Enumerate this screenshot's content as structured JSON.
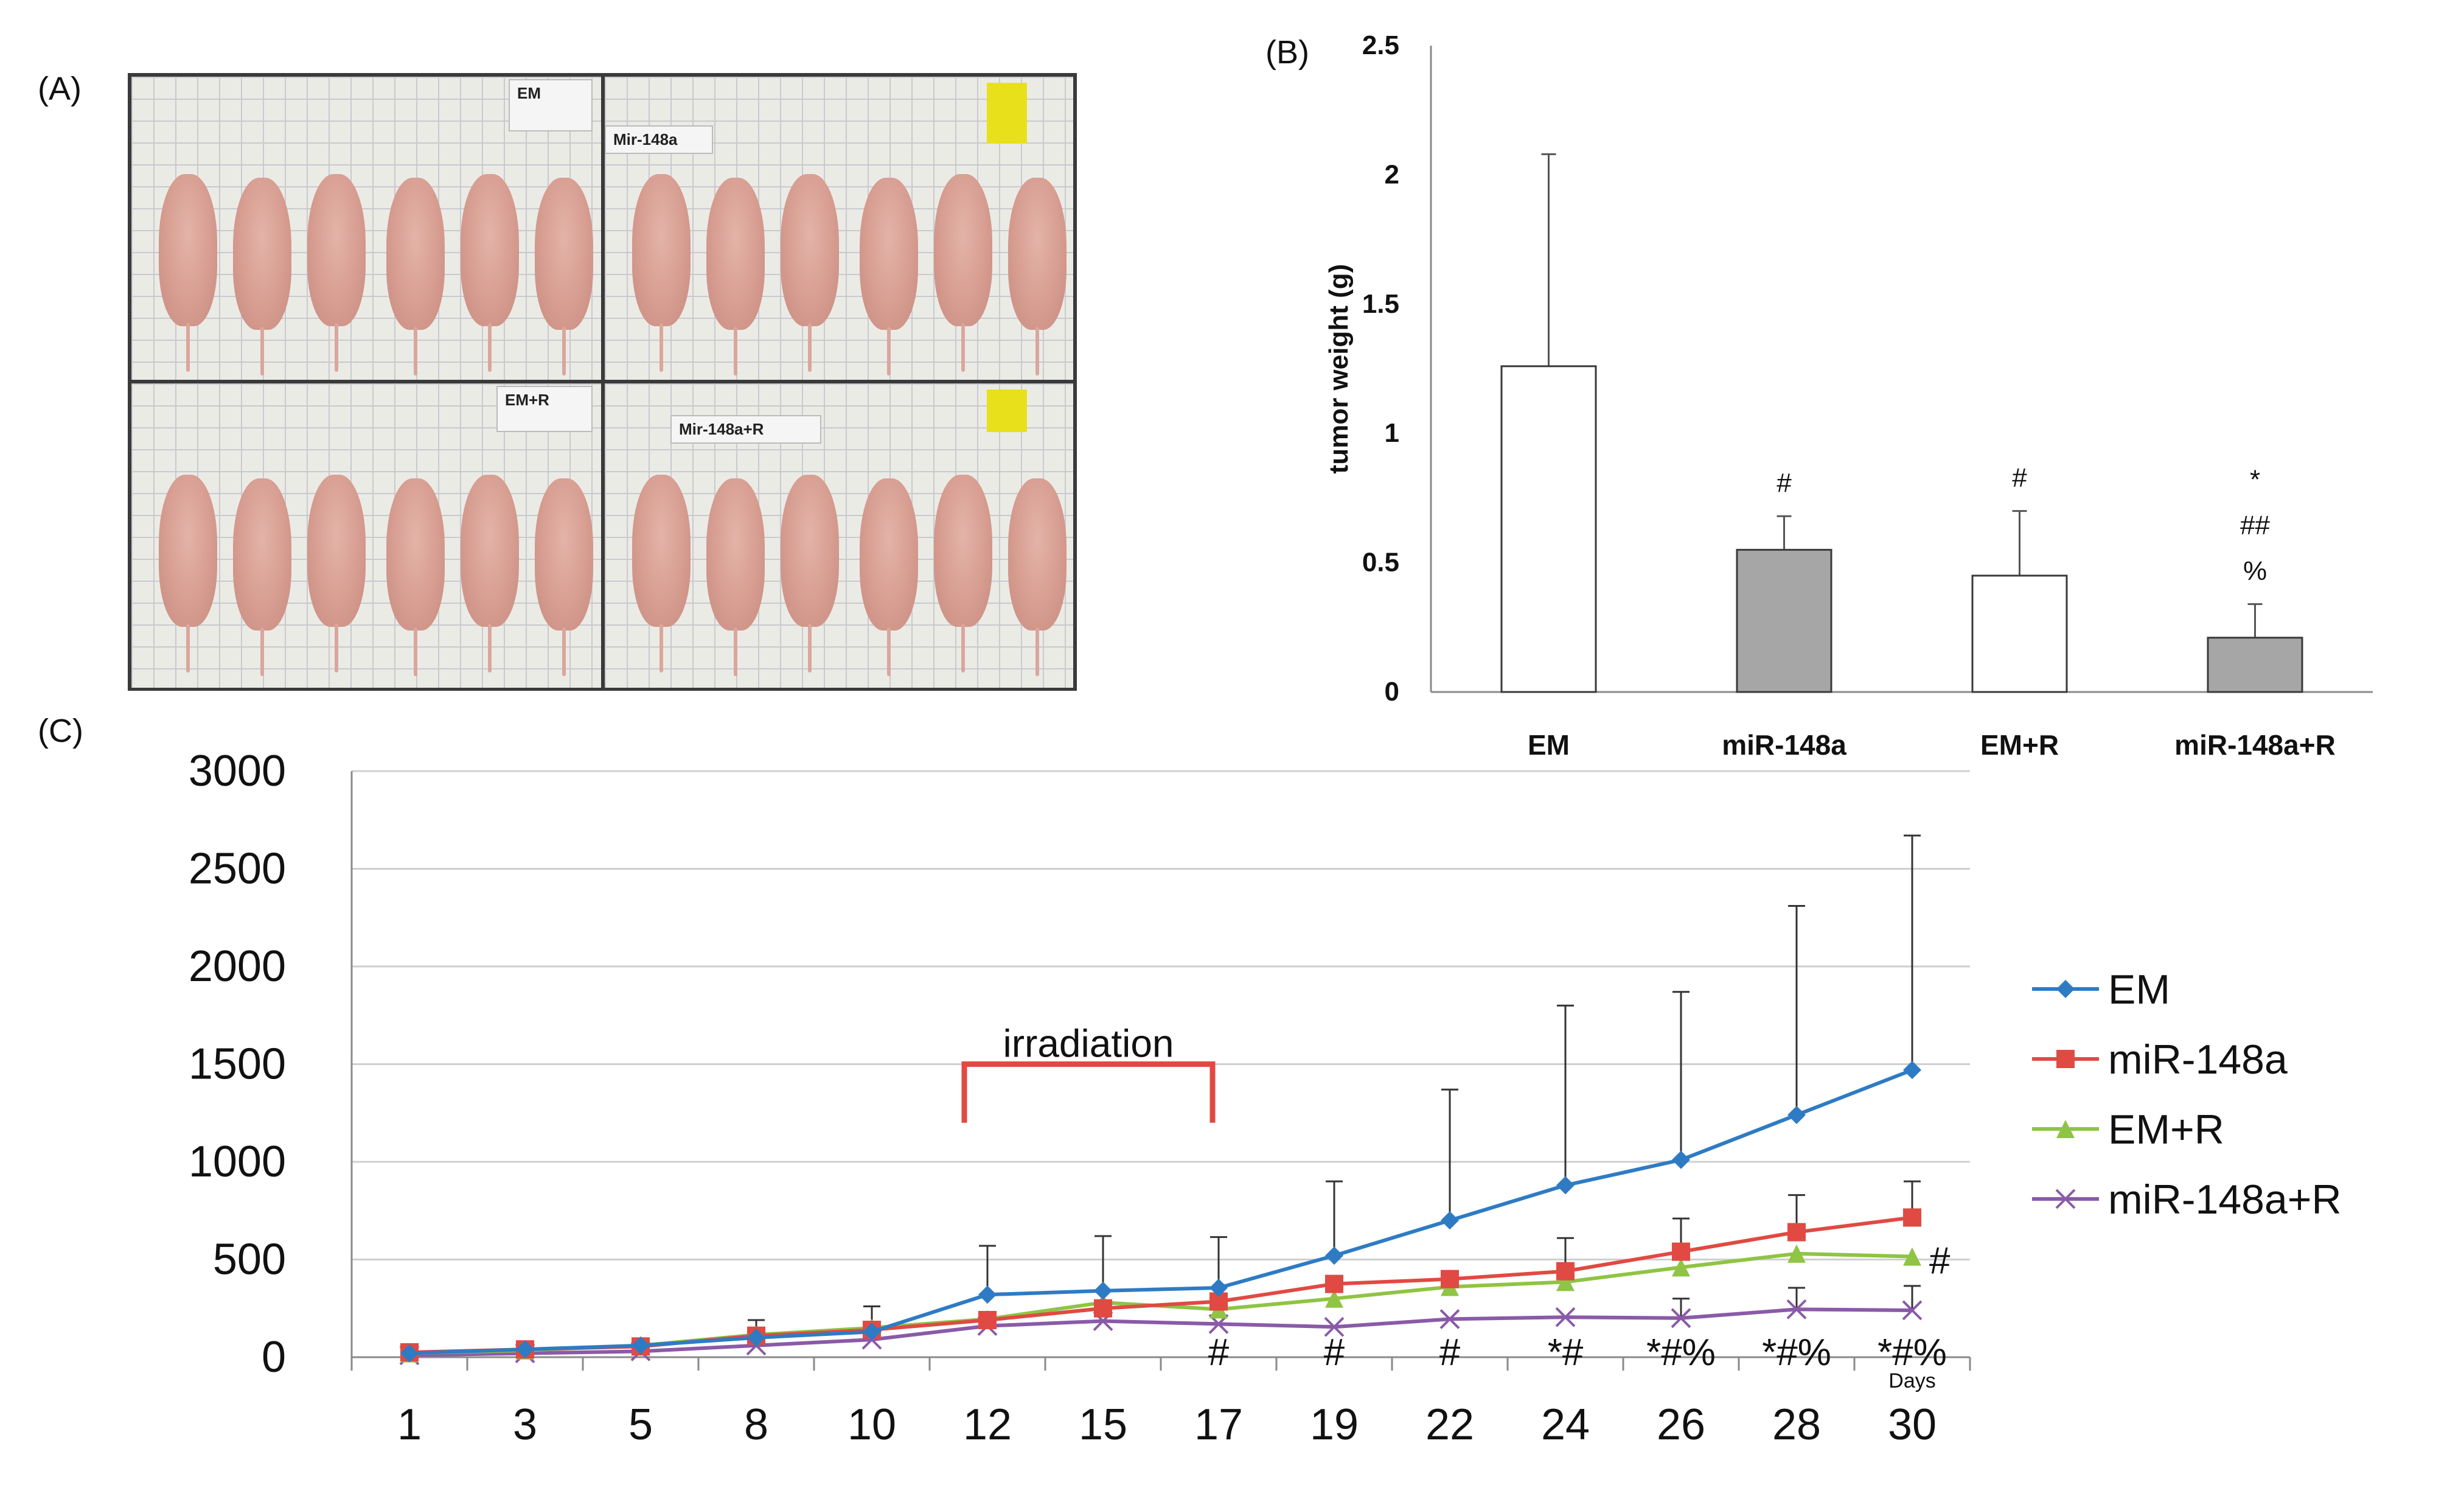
{
  "panel_labels": {
    "a": "(A)",
    "b": "(B)",
    "c": "(C)"
  },
  "photo": {
    "description_icon": "mouse-photo-grid",
    "quadrant_labels": [
      "EM",
      "Mir-148a",
      "EM+R",
      "Mir-148a+R"
    ]
  },
  "chart_data": [
    {
      "type": "bar",
      "title": "",
      "xlabel": "",
      "ylabel": "tumor weight (g)",
      "ylim": [
        0,
        2.5
      ],
      "yticks": [
        "0",
        "0.5",
        "1",
        "1.5",
        "2",
        "2.5"
      ],
      "categories": [
        "EM",
        "miR-148a",
        "EM+R",
        "miR-148a+R"
      ],
      "values": [
        1.26,
        0.55,
        0.45,
        0.21
      ],
      "error_upper": [
        0.82,
        0.13,
        0.25,
        0.13
      ],
      "bar_colors": [
        "#ffffff",
        "#a6a6a6",
        "#ffffff",
        "#a6a6a6"
      ],
      "annotations": [
        {
          "category": "miR-148a",
          "lines": [
            "#"
          ]
        },
        {
          "category": "EM+R",
          "lines": [
            "#"
          ]
        },
        {
          "category": "miR-148a+R",
          "lines": [
            "*",
            "##",
            "%"
          ]
        }
      ]
    },
    {
      "type": "line",
      "title": "",
      "xlabel": "Days",
      "ylabel": "",
      "ylim": [
        0,
        3000
      ],
      "yticks": [
        "0",
        "500",
        "1000",
        "1500",
        "2000",
        "2500",
        "3000"
      ],
      "x": [
        "1",
        "3",
        "5",
        "8",
        "10",
        "12",
        "15",
        "17",
        "19",
        "22",
        "24",
        "26",
        "28",
        "30"
      ],
      "legend_position": "right",
      "series": [
        {
          "name": "EM",
          "color": "#2e7bc4",
          "marker": "diamond",
          "values": [
            20,
            40,
            60,
            100,
            130,
            320,
            340,
            355,
            520,
            700,
            880,
            1010,
            1240,
            1470
          ],
          "error": [
            20,
            20,
            30,
            90,
            130,
            250,
            280,
            260,
            380,
            670,
            920,
            860,
            1070,
            1200
          ]
        },
        {
          "name": "miR-148a",
          "color": "#e04a42",
          "marker": "square",
          "values": [
            25,
            40,
            55,
            110,
            140,
            190,
            250,
            285,
            375,
            400,
            440,
            540,
            640,
            715
          ],
          "error": [
            0,
            0,
            0,
            0,
            0,
            0,
            0,
            0,
            0,
            0,
            170,
            170,
            190,
            185
          ]
        },
        {
          "name": "EM+R",
          "color": "#8fc444",
          "marker": "triangle",
          "values": [
            20,
            35,
            60,
            115,
            150,
            195,
            280,
            245,
            300,
            360,
            385,
            460,
            530,
            515
          ],
          "error": [
            0,
            0,
            0,
            0,
            0,
            0,
            0,
            0,
            0,
            0,
            0,
            0,
            0,
            0
          ]
        },
        {
          "name": "miR-148a+R",
          "color": "#8a5aa8",
          "marker": "x",
          "values": [
            10,
            20,
            30,
            60,
            90,
            160,
            185,
            170,
            155,
            195,
            205,
            200,
            245,
            240
          ],
          "error": [
            0,
            0,
            0,
            0,
            0,
            0,
            0,
            0,
            0,
            0,
            0,
            100,
            110,
            125
          ]
        }
      ],
      "irradiation_label": "irradiation",
      "irradiation_range": [
        "12",
        "17"
      ],
      "significance": [
        {
          "x": "17",
          "text": "#"
        },
        {
          "x": "19",
          "text": "#"
        },
        {
          "x": "22",
          "text": "#"
        },
        {
          "x": "24",
          "text": "*#"
        },
        {
          "x": "26",
          "text": "*#%"
        },
        {
          "x": "28",
          "text": "*#%"
        },
        {
          "x": "30",
          "text": "*#%"
        },
        {
          "x": "30",
          "text": "#",
          "level": "EM+R"
        }
      ]
    }
  ]
}
